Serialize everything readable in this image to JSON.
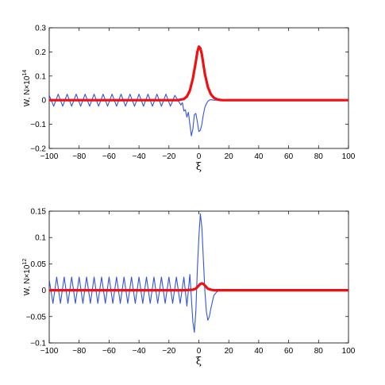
{
  "chart_data": [
    {
      "type": "line",
      "xlabel": "ξ",
      "ylabel_prefix": "W, N×10",
      "ylabel_exponent": "14",
      "xlim": [
        -100,
        100
      ],
      "ylim": [
        -0.2,
        0.3
      ],
      "grid": false,
      "x_ticks": [
        -100,
        -80,
        -60,
        -40,
        -20,
        0,
        20,
        40,
        60,
        80,
        100
      ],
      "y_ticks": [
        -0.2,
        -0.1,
        0,
        0.1,
        0.2,
        0.3
      ],
      "x_tick_labels": [
        "−100",
        "−80",
        "−60",
        "−40",
        "−20",
        "0",
        "20",
        "40",
        "60",
        "80",
        "100"
      ],
      "y_tick_labels": [
        "−0.2",
        "−0.1",
        "0",
        "0.1",
        "0.2",
        "0.3"
      ],
      "series": [
        {
          "color": "#3355dd",
          "line": "thin",
          "x": [
            -100,
            -97,
            -94,
            -91,
            -88,
            -85,
            -82,
            -79,
            -76,
            -73,
            -70,
            -67,
            -64,
            -61,
            -58,
            -55,
            -52,
            -49,
            -46,
            -43,
            -40,
            -37,
            -34,
            -31,
            -28,
            -25,
            -22,
            -19,
            -16,
            -14,
            -12,
            -11,
            -10,
            -9,
            -8,
            -7,
            -6,
            -5,
            -4,
            -3,
            -2,
            -1,
            0,
            1,
            2,
            3,
            4,
            5,
            6,
            7,
            8,
            10,
            12,
            14,
            20,
            40,
            60,
            80,
            100
          ],
          "y": [
            0.02,
            -0.025,
            0.025,
            -0.025,
            0.025,
            -0.025,
            0.025,
            -0.025,
            0.025,
            -0.025,
            0.025,
            -0.025,
            0.025,
            -0.025,
            0.025,
            -0.025,
            0.025,
            -0.025,
            0.025,
            -0.025,
            0.025,
            -0.025,
            0.025,
            -0.025,
            0.025,
            -0.025,
            0.025,
            -0.025,
            0.02,
            0.0,
            -0.02,
            -0.01,
            -0.045,
            -0.04,
            -0.07,
            -0.05,
            -0.1,
            -0.148,
            -0.12,
            -0.06,
            -0.055,
            -0.09,
            -0.13,
            -0.125,
            -0.1,
            -0.06,
            -0.03,
            -0.015,
            -0.005,
            0.0,
            0.002,
            0.0,
            0.0,
            0.0,
            0.0,
            0.0,
            0.0,
            0.0,
            0.0
          ]
        },
        {
          "color": "#ee1111",
          "line": "thick",
          "x": [
            -100,
            -20,
            -14,
            -10,
            -8,
            -6,
            -4,
            -2,
            -1,
            0,
            1,
            2,
            3,
            4,
            6,
            8,
            10,
            12,
            14,
            16,
            20,
            40,
            60,
            80,
            100
          ],
          "y": [
            0.0,
            0.0,
            0.0,
            0.005,
            0.015,
            0.04,
            0.09,
            0.16,
            0.2,
            0.222,
            0.215,
            0.19,
            0.15,
            0.11,
            0.055,
            0.025,
            0.01,
            0.004,
            0.001,
            0.0,
            0.0,
            0.0,
            0.0,
            0.0,
            0.0
          ]
        }
      ]
    },
    {
      "type": "line",
      "xlabel": "ξ",
      "ylabel_prefix": "W, N×10",
      "ylabel_exponent": "12",
      "xlim": [
        -100,
        100
      ],
      "ylim": [
        -0.1,
        0.15
      ],
      "grid": false,
      "x_ticks": [
        -100,
        -80,
        -60,
        -40,
        -20,
        0,
        20,
        40,
        60,
        80,
        100
      ],
      "y_ticks": [
        -0.1,
        -0.05,
        0,
        0.05,
        0.1,
        0.15
      ],
      "x_tick_labels": [
        "−100",
        "−80",
        "−60",
        "−40",
        "−20",
        "0",
        "20",
        "40",
        "60",
        "80",
        "100"
      ],
      "y_tick_labels": [
        "−0.1",
        "−0.05",
        "0",
        "0.05",
        "0.1",
        "0.15"
      ],
      "series": [
        {
          "color": "#3355dd",
          "line": "thin",
          "x": [
            -100,
            -97.5,
            -95,
            -92.5,
            -90,
            -87.5,
            -85,
            -82.5,
            -80,
            -77.5,
            -75,
            -72.5,
            -70,
            -67.5,
            -65,
            -62.5,
            -60,
            -57.5,
            -55,
            -52.5,
            -50,
            -47.5,
            -45,
            -42.5,
            -40,
            -37.5,
            -35,
            -32.5,
            -30,
            -27.5,
            -25,
            -22.5,
            -20,
            -17.5,
            -15,
            -12.5,
            -10,
            -8,
            -6,
            -4,
            -3,
            -2,
            -1,
            0,
            1,
            2,
            3,
            4,
            5,
            6,
            7,
            8,
            10,
            12,
            14,
            16,
            20,
            40,
            60,
            80,
            100
          ],
          "y": [
            0.02,
            -0.025,
            0.025,
            -0.025,
            0.025,
            -0.025,
            0.025,
            -0.025,
            0.025,
            -0.025,
            0.025,
            -0.025,
            0.025,
            -0.025,
            0.025,
            -0.025,
            0.025,
            -0.025,
            0.025,
            -0.025,
            0.025,
            -0.025,
            0.025,
            -0.025,
            0.025,
            -0.025,
            0.025,
            -0.025,
            0.025,
            -0.025,
            0.025,
            -0.025,
            0.025,
            -0.025,
            0.025,
            -0.025,
            0.025,
            -0.03,
            0.03,
            -0.06,
            -0.08,
            -0.04,
            0.04,
            0.1,
            0.145,
            0.12,
            0.06,
            0.0,
            -0.04,
            -0.057,
            -0.05,
            -0.035,
            -0.01,
            -0.003,
            0.0,
            0.0,
            0.0,
            0.0,
            0.0,
            0.0,
            0.0
          ]
        },
        {
          "color": "#ee1111",
          "line": "thick",
          "x": [
            -100,
            -10,
            -4,
            -2,
            -1,
            0,
            1,
            2,
            3,
            4,
            5,
            6,
            8,
            10,
            20,
            40,
            60,
            80,
            100
          ],
          "y": [
            0.0,
            0.0,
            0.001,
            0.003,
            0.006,
            0.009,
            0.012,
            0.013,
            0.012,
            0.009,
            0.006,
            0.003,
            0.001,
            0.0,
            0.0,
            0.0,
            0.0,
            0.0,
            0.0
          ]
        }
      ]
    }
  ]
}
